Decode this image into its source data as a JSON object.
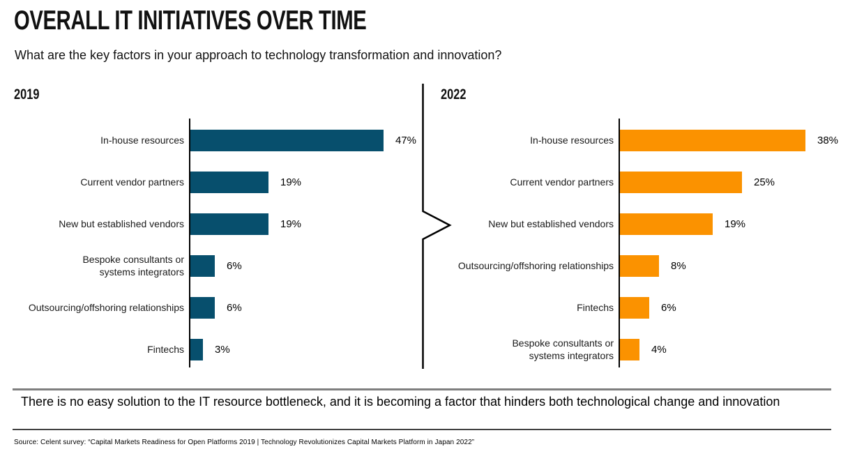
{
  "header": {
    "title": "OVERALL IT INITIATIVES OVER TIME",
    "subtitle": "What are the key factors in your approach to technology transformation and innovation?"
  },
  "chart_data": [
    {
      "type": "bar",
      "orientation": "horizontal",
      "title": "2019",
      "color": "#074F6D",
      "categories": [
        "In-house resources",
        "Current vendor partners",
        "New but established vendors",
        "Bespoke consultants or\nsystems integrators",
        "Outsourcing/offshoring relationships",
        "Fintechs"
      ],
      "values": [
        47,
        19,
        19,
        6,
        6,
        3
      ],
      "labels": [
        "47%",
        "19%",
        "19%",
        "6%",
        "6%",
        "3%"
      ],
      "xlim": [
        0,
        50
      ],
      "grid": false,
      "value_labels_position": "end-of-bar"
    },
    {
      "type": "bar",
      "orientation": "horizontal",
      "title": "2022",
      "color": "#FB9200",
      "categories": [
        "In-house resources",
        "Current vendor partners",
        "New but established vendors",
        "Outsourcing/offshoring relationships",
        "Fintechs",
        "Bespoke consultants or\nsystems integrators"
      ],
      "values": [
        38,
        25,
        19,
        8,
        6,
        4
      ],
      "labels": [
        "38%",
        "25%",
        "19%",
        "8%",
        "6%",
        "4%"
      ],
      "xlim": [
        0,
        40
      ],
      "grid": false,
      "value_labels_position": "end-of-bar"
    }
  ],
  "takeaway": "There is no easy solution to the IT resource bottleneck, and it is becoming a factor that hinders both technological change and innovation",
  "source": "Source: Celent survey: “Capital Markets Readiness for Open Platforms 2019 | Technology Revolutionizes Capital Markets Platform in Japan 2022”",
  "colors": {
    "bar_2019": "#074F6D",
    "bar_2022": "#FB9200",
    "rule_gray": "#7f7f7f",
    "rule_dark": "#404040"
  }
}
